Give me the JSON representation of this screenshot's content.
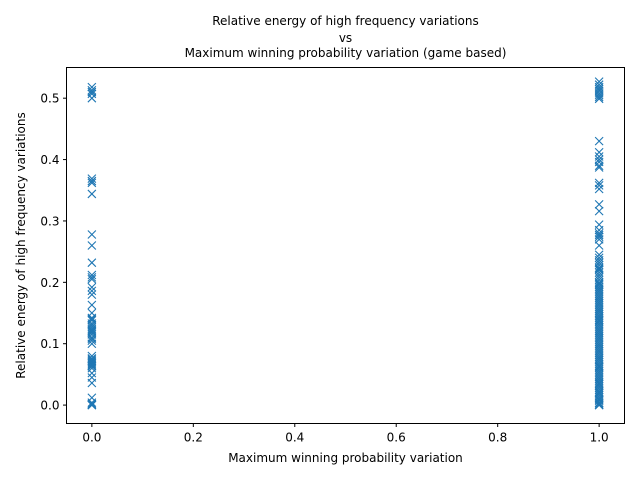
{
  "chart_data": {
    "type": "scatter",
    "title_lines": [
      "Relative energy of high frequency variations",
      "vs",
      "Maximum winning probability variation (game based)"
    ],
    "xlabel": "Maximum winning probability variation",
    "ylabel": "Relative energy of high frequency variations",
    "xlim": [
      -0.05,
      1.05
    ],
    "ylim": [
      -0.03,
      0.55
    ],
    "xticks": [
      0.0,
      0.2,
      0.4,
      0.6,
      0.8,
      1.0
    ],
    "xtick_labels": [
      "0.0",
      "0.2",
      "0.4",
      "0.6",
      "0.8",
      "1.0"
    ],
    "yticks": [
      0.0,
      0.1,
      0.2,
      0.3,
      0.4,
      0.5
    ],
    "ytick_labels": [
      "0.0",
      "0.1",
      "0.2",
      "0.3",
      "0.4",
      "0.5"
    ],
    "grid": false,
    "marker": "x",
    "color": "#1f77b4",
    "series": [
      {
        "x": [
          0,
          0,
          0,
          0,
          0,
          0,
          0,
          0,
          0,
          0,
          0,
          0,
          0,
          0,
          0,
          0,
          0,
          0,
          0,
          0,
          0,
          0,
          0,
          0,
          0,
          0,
          0,
          0,
          0,
          0,
          0,
          0,
          0,
          0,
          0,
          0,
          0,
          0,
          0,
          0,
          0,
          0,
          0,
          0,
          0,
          0,
          0,
          0,
          0,
          0,
          0,
          0,
          0,
          0
        ],
        "y": [
          0.518,
          0.513,
          0.51,
          0.507,
          0.5,
          0.369,
          0.365,
          0.362,
          0.344,
          0.278,
          0.26,
          0.232,
          0.212,
          0.208,
          0.205,
          0.192,
          0.186,
          0.18,
          0.163,
          0.15,
          0.142,
          0.138,
          0.133,
          0.13,
          0.127,
          0.124,
          0.12,
          0.115,
          0.11,
          0.105,
          0.1,
          0.08,
          0.076,
          0.072,
          0.07,
          0.068,
          0.066,
          0.063,
          0.06,
          0.052,
          0.036,
          0.012,
          0.004,
          0.001,
          0.0,
          0.0,
          0.14,
          0.122,
          0.118,
          0.108,
          0.074,
          0.064,
          0.045,
          0.002
        ]
      },
      {
        "x": [
          1,
          1,
          1,
          1,
          1,
          1,
          1,
          1,
          1,
          1,
          1,
          1,
          1,
          1,
          1,
          1,
          1,
          1,
          1,
          1,
          1,
          1,
          1,
          1,
          1,
          1,
          1,
          1,
          1,
          1,
          1,
          1,
          1,
          1,
          1,
          1,
          1,
          1,
          1,
          1,
          1,
          1,
          1,
          1,
          1,
          1,
          1,
          1,
          1,
          1,
          1,
          1,
          1,
          1,
          1,
          1,
          1,
          1,
          1,
          1,
          1,
          1,
          1,
          1,
          1,
          1,
          1,
          1,
          1,
          1,
          1,
          1,
          1,
          1,
          1,
          1,
          1,
          1,
          1,
          1,
          1,
          1,
          1,
          1,
          1,
          1,
          1,
          1,
          1,
          1,
          1,
          1,
          1,
          1,
          1,
          1,
          1,
          1,
          1,
          1,
          1,
          1,
          1,
          1,
          1,
          1,
          1,
          1,
          1,
          1,
          1,
          1,
          1,
          1,
          1,
          1,
          1
        ],
        "y": [
          0.527,
          0.522,
          0.518,
          0.515,
          0.512,
          0.508,
          0.505,
          0.502,
          0.499,
          0.43,
          0.412,
          0.405,
          0.4,
          0.396,
          0.39,
          0.387,
          0.362,
          0.358,
          0.352,
          0.327,
          0.316,
          0.294,
          0.285,
          0.28,
          0.277,
          0.274,
          0.27,
          0.245,
          0.24,
          0.236,
          0.232,
          0.228,
          0.224,
          0.22,
          0.216,
          0.212,
          0.208,
          0.204,
          0.2,
          0.196,
          0.193,
          0.19,
          0.187,
          0.184,
          0.181,
          0.178,
          0.175,
          0.172,
          0.169,
          0.166,
          0.163,
          0.16,
          0.157,
          0.154,
          0.151,
          0.148,
          0.145,
          0.142,
          0.139,
          0.136,
          0.133,
          0.13,
          0.127,
          0.124,
          0.121,
          0.118,
          0.115,
          0.112,
          0.109,
          0.106,
          0.103,
          0.1,
          0.097,
          0.094,
          0.091,
          0.088,
          0.085,
          0.082,
          0.079,
          0.076,
          0.073,
          0.07,
          0.067,
          0.064,
          0.061,
          0.058,
          0.055,
          0.052,
          0.049,
          0.046,
          0.043,
          0.04,
          0.037,
          0.034,
          0.031,
          0.028,
          0.025,
          0.022,
          0.019,
          0.016,
          0.013,
          0.01,
          0.007,
          0.004,
          0.001,
          0.0,
          0.0,
          0.145,
          0.138,
          0.062,
          0.035,
          0.02,
          0.008,
          0.003,
          0.26,
          0.222,
          0.198
        ]
      }
    ]
  }
}
